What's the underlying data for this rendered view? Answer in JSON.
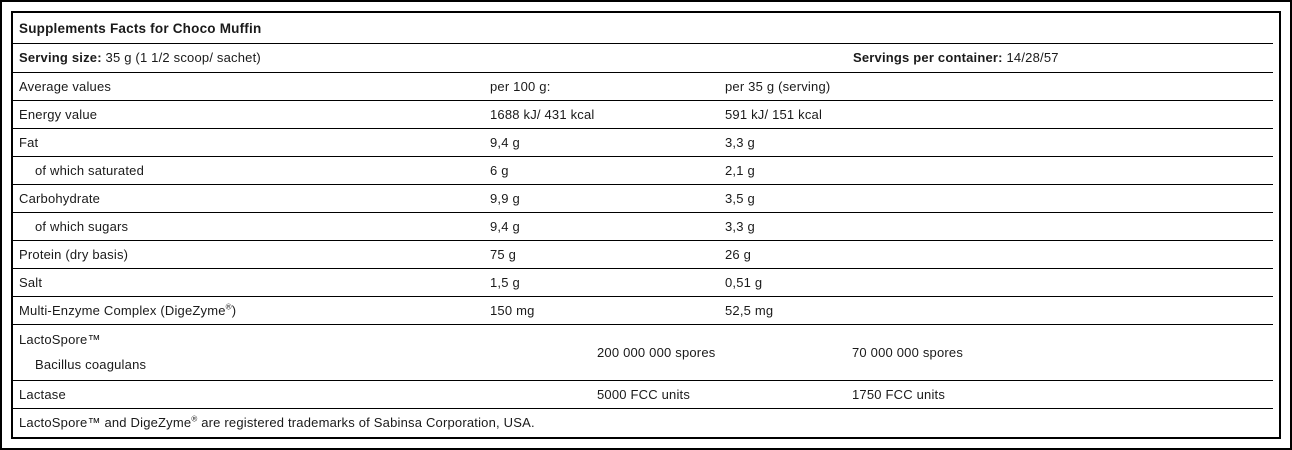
{
  "table": {
    "title": "Supplements Facts for Choco Muffin",
    "serving": {
      "size_label": "Serving size:",
      "size_value": " 35 g (1 1/2 scoop/ sachet)",
      "container_label": "Servings per container:",
      "container_value": " 14/28/57"
    },
    "columns": {
      "header": "Average values",
      "per100": "per 100 g:",
      "per35": "per 35 g (serving)"
    },
    "rows": [
      {
        "label": "Energy value",
        "per100": "1688 kJ/ 431 kcal",
        "per35": "591 kJ/ 151 kcal"
      },
      {
        "label": "Fat",
        "per100": "9,4 g",
        "per35": "3,3 g"
      },
      {
        "label": "of which saturated",
        "per100": "6 g",
        "per35": "2,1 g"
      },
      {
        "label": "Carbohydrate",
        "per100": "9,9 g",
        "per35": "3,5 g"
      },
      {
        "label": "of which sugars",
        "per100": "9,4 g",
        "per35": "3,3 g"
      },
      {
        "label": "Protein (dry basis)",
        "per100": "75 g",
        "per35": "26 g"
      },
      {
        "label": "Salt",
        "per100": "1,5 g",
        "per35": "0,51 g"
      }
    ],
    "multi_enzyme": {
      "label_pre": "Multi-Enzyme Complex (DigeZyme",
      "label_sup": "®",
      "label_post": ")",
      "per100": "150 mg",
      "per35": "52,5 mg"
    },
    "lactospore": {
      "line1": "LactoSpore™",
      "line2": "Bacillus coagulans",
      "per100": "200 000 000 spores",
      "per35": "70 000 000 spores"
    },
    "lactase": {
      "label": "Lactase",
      "per100": "5000 FCC units",
      "per35": "1750 FCC units"
    },
    "footnote": {
      "pre": "LactoSpore™ and DigeZyme",
      "sup": "®",
      "post": " are registered trademarks of Sabinsa Corporation, USA."
    },
    "colors": {
      "text": "#1a1a1a",
      "line": "#000000",
      "background": "#ffffff"
    }
  }
}
